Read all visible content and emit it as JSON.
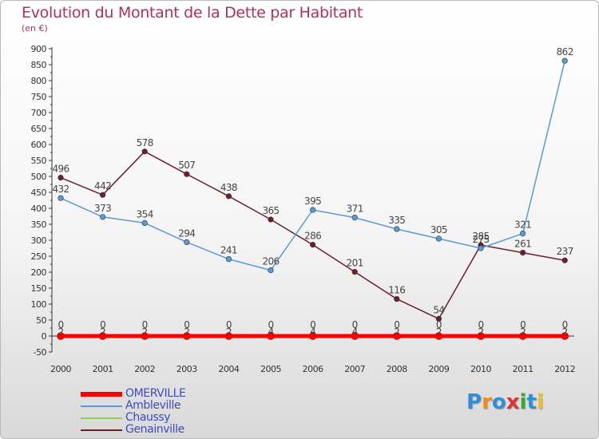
{
  "title": "Evolution du Montant de la Dette par Habitant",
  "subtitle": "(en €)",
  "logo": {
    "text": "Proxiti",
    "colors": [
      "#2f8fd8",
      "#f08c1a",
      "#2f8fd8",
      "#e03030",
      "#3aaa35",
      "#2f8fd8",
      "#f0c020"
    ]
  },
  "chart_data": {
    "type": "line",
    "title": "Evolution du Montant de la Dette par Habitant",
    "subtitle": "(en €)",
    "xlabel": "",
    "ylabel": "",
    "categories": [
      "2000",
      "2001",
      "2002",
      "2003",
      "2004",
      "2005",
      "2006",
      "2007",
      "2008",
      "2009",
      "2010",
      "2011",
      "2012"
    ],
    "ylim": [
      -50,
      900
    ],
    "yticks": [
      -50,
      0,
      50,
      100,
      150,
      200,
      250,
      300,
      350,
      400,
      450,
      500,
      550,
      600,
      650,
      700,
      750,
      800,
      850,
      900
    ],
    "grid": false,
    "legend": "bottom-left",
    "series": [
      {
        "name": "OMERVILLE",
        "color": "#ff0000",
        "values": [
          0,
          0,
          0,
          0,
          0,
          0,
          0,
          0,
          0,
          0,
          0,
          0,
          0
        ],
        "labels": [
          "0",
          "0",
          "0",
          "0",
          "0",
          "0",
          "0",
          "0",
          "0",
          "0",
          "0",
          "0",
          "0"
        ]
      },
      {
        "name": "Ambleville",
        "color": "#5b9bd5",
        "values": [
          432,
          373,
          354,
          294,
          241,
          206,
          395,
          371,
          335,
          305,
          275,
          321,
          862
        ],
        "labels": [
          "432",
          "373",
          "354",
          "294",
          "241",
          "206",
          "395",
          "371",
          "335",
          "305",
          "275",
          "321",
          "862"
        ]
      },
      {
        "name": "Chaussy",
        "color": "#92d050",
        "values": [
          2,
          2,
          2,
          2,
          2,
          4,
          4,
          4,
          2,
          2,
          2,
          2,
          2
        ],
        "labels": [
          "2",
          "2",
          "2",
          "2",
          "2",
          "4",
          "4",
          "4",
          "2",
          "2",
          "2",
          "2",
          "2"
        ]
      },
      {
        "name": "Genainville",
        "color": "#6d1f2b",
        "values": [
          496,
          442,
          578,
          507,
          438,
          365,
          286,
          201,
          116,
          54,
          285,
          261,
          237
        ],
        "labels": [
          "496",
          "442",
          "578",
          "507",
          "438",
          "365",
          "286",
          "201",
          "116",
          "54",
          "285",
          "261",
          "237"
        ]
      }
    ]
  }
}
